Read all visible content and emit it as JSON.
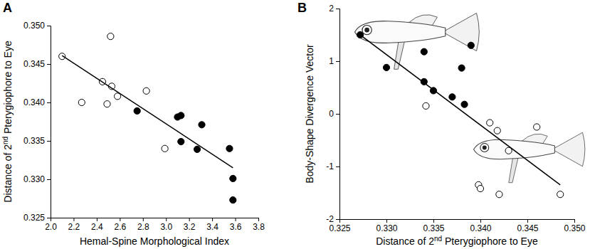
{
  "chart_data": [
    {
      "type": "scatter",
      "title": "A",
      "x_label": "Hemal-Spine Morphological Index",
      "y_label": "Distance of 2nd Pterygiophore to Eye",
      "xlim": [
        2.0,
        3.8
      ],
      "xticks": [
        {
          "value": 2.0,
          "label": "2.0"
        },
        {
          "value": 2.2,
          "label": "2.2"
        },
        {
          "value": 2.4,
          "label": "2.4"
        },
        {
          "value": 2.6,
          "label": "2.6"
        },
        {
          "value": 2.8,
          "label": "2.8"
        },
        {
          "value": 3.0,
          "label": "3.0"
        },
        {
          "value": 3.2,
          "label": "3.2"
        },
        {
          "value": 3.4,
          "label": "3.4"
        },
        {
          "value": 3.6,
          "label": "3.6"
        },
        {
          "value": 3.8,
          "label": "3.8"
        }
      ],
      "ylim": [
        0.325,
        0.35
      ],
      "yticks": [
        0.325,
        {
          "value": 0.33,
          "label": "0.330"
        },
        0.335,
        {
          "value": 0.34,
          "label": "0.340"
        },
        0.345,
        {
          "value": 0.35,
          "label": "0.350"
        }
      ],
      "series": [
        {
          "type": "scatter",
          "marker": "circle-open",
          "color": "#000000",
          "x": [
            2.1,
            2.27,
            2.45,
            2.49,
            2.52,
            2.53,
            2.58,
            2.83,
            2.99
          ],
          "values": [
            0.346,
            0.34,
            0.3427,
            0.3398,
            0.3486,
            0.3421,
            0.3408,
            0.3415,
            0.334
          ]
        },
        {
          "type": "scatter",
          "marker": "circle",
          "color": "#000000",
          "x": [
            2.75,
            3.1,
            3.13,
            3.13,
            3.27,
            3.31,
            3.55,
            3.58,
            3.58
          ],
          "values": [
            0.3389,
            0.3381,
            0.3383,
            0.3349,
            0.3339,
            0.3371,
            0.334,
            0.3301,
            0.3273
          ]
        },
        {
          "type": "line",
          "line_style": "solid",
          "color": "#000000",
          "x": [
            2.1,
            3.58
          ],
          "values": [
            0.3461,
            0.3315
          ]
        }
      ]
    },
    {
      "type": "scatter",
      "title": "B",
      "x_label": "Distance of 2nd Pterygiophore to Eye",
      "y_label": "Body-Shape Divergence Vector",
      "xlim": [
        0.325,
        0.35
      ],
      "xticks": [
        0.325,
        {
          "value": 0.33,
          "label": "0.330"
        },
        0.335,
        {
          "value": 0.34,
          "label": "0.340"
        },
        0.345,
        {
          "value": 0.35,
          "label": "0.350"
        }
      ],
      "ylim": [
        -2,
        2
      ],
      "yticks": [
        -2,
        -1,
        0,
        1,
        2
      ],
      "series": [
        {
          "type": "scatter",
          "marker": "circle",
          "color": "#000000",
          "x": [
            0.3272,
            0.33,
            0.334,
            0.334,
            0.335,
            0.337,
            0.338,
            0.3383,
            0.339
          ],
          "values": [
            1.5,
            0.88,
            1.18,
            0.61,
            0.44,
            0.32,
            0.87,
            0.18,
            1.3
          ]
        },
        {
          "type": "scatter",
          "marker": "circle-open",
          "color": "#000000",
          "x": [
            0.3342,
            0.3398,
            0.34,
            0.341,
            0.3418,
            0.342,
            0.343,
            0.346,
            0.3485
          ],
          "values": [
            0.15,
            -1.35,
            -1.42,
            -0.17,
            -0.32,
            -1.53,
            -0.7,
            -0.25,
            -1.53
          ]
        },
        {
          "type": "line",
          "line_style": "solid",
          "color": "#000000",
          "x": [
            0.3272,
            0.3485
          ],
          "values": [
            1.5,
            -1.35
          ]
        }
      ]
    }
  ]
}
